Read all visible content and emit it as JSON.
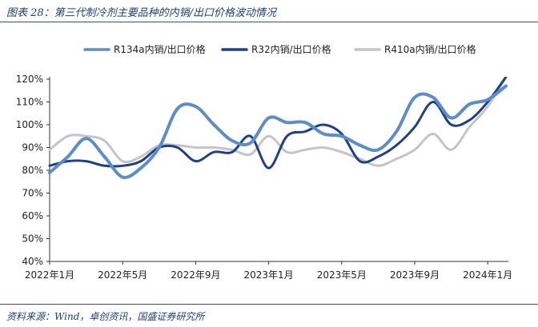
{
  "title": "图表 28：第三代制冷剂主要品种的内销/出口价格波动情况",
  "source": "资料来源：Wind，卓创资讯，国盛证券研究所",
  "chart_data": {
    "type": "line",
    "x_tick_labels": [
      "2022年1月",
      "2022年5月",
      "2022年9月",
      "2023年1月",
      "2023年5月",
      "2023年9月",
      "2024年1月"
    ],
    "y_tick_labels": [
      "40%",
      "50%",
      "60%",
      "70%",
      "80%",
      "90%",
      "100%",
      "110%",
      "120%"
    ],
    "ylim": [
      40,
      120
    ],
    "x_range_months": [
      "2022-01",
      "2024-02"
    ],
    "legend_position": "top",
    "series": [
      {
        "name": "R134a内销/出口价格",
        "color": "#5b8ccb",
        "width": 4,
        "points": [
          [
            "2022-01",
            79
          ],
          [
            "2022-02",
            86
          ],
          [
            "2022-03",
            94
          ],
          [
            "2022-04",
            86
          ],
          [
            "2022-05",
            77
          ],
          [
            "2022-06",
            81
          ],
          [
            "2022-07",
            90
          ],
          [
            "2022-08",
            107
          ],
          [
            "2022-09",
            108
          ],
          [
            "2022-10",
            100
          ],
          [
            "2022-11",
            93
          ],
          [
            "2022-12",
            92
          ],
          [
            "2023-01",
            103
          ],
          [
            "2023-02",
            101
          ],
          [
            "2023-03",
            101
          ],
          [
            "2023-04",
            96
          ],
          [
            "2023-05",
            95
          ],
          [
            "2023-06",
            91
          ],
          [
            "2023-07",
            89
          ],
          [
            "2023-08",
            97
          ],
          [
            "2023-09",
            112
          ],
          [
            "2023-10",
            112
          ],
          [
            "2023-11",
            103
          ],
          [
            "2023-12",
            109
          ],
          [
            "2024-01",
            111
          ],
          [
            "2024-02",
            117
          ]
        ]
      },
      {
        "name": "R32内销/出口价格",
        "color": "#1c3f8e",
        "width": 3,
        "points": [
          [
            "2022-01",
            82
          ],
          [
            "2022-02",
            84
          ],
          [
            "2022-03",
            84
          ],
          [
            "2022-04",
            82
          ],
          [
            "2022-05",
            82
          ],
          [
            "2022-06",
            84
          ],
          [
            "2022-07",
            90
          ],
          [
            "2022-08",
            90
          ],
          [
            "2022-09",
            84
          ],
          [
            "2022-10",
            88
          ],
          [
            "2022-11",
            88
          ],
          [
            "2022-12",
            95
          ],
          [
            "2023-01",
            81
          ],
          [
            "2023-02",
            95
          ],
          [
            "2023-03",
            97
          ],
          [
            "2023-04",
            100
          ],
          [
            "2023-05",
            96
          ],
          [
            "2023-06",
            84
          ],
          [
            "2023-07",
            86
          ],
          [
            "2023-08",
            91
          ],
          [
            "2023-09",
            99
          ],
          [
            "2023-10",
            110
          ],
          [
            "2023-11",
            100
          ],
          [
            "2023-12",
            102
          ],
          [
            "2024-01",
            110
          ],
          [
            "2024-02",
            121
          ]
        ]
      },
      {
        "name": "R410a内销/出口价格",
        "color": "#c4c4c4",
        "width": 3,
        "points": [
          [
            "2022-01",
            89
          ],
          [
            "2022-02",
            95
          ],
          [
            "2022-03",
            95
          ],
          [
            "2022-04",
            93
          ],
          [
            "2022-05",
            84
          ],
          [
            "2022-06",
            86
          ],
          [
            "2022-07",
            91
          ],
          [
            "2022-08",
            91
          ],
          [
            "2022-09",
            90
          ],
          [
            "2022-10",
            90
          ],
          [
            "2022-11",
            89
          ],
          [
            "2022-12",
            87
          ],
          [
            "2023-01",
            95
          ],
          [
            "2023-02",
            88
          ],
          [
            "2023-03",
            89
          ],
          [
            "2023-04",
            90
          ],
          [
            "2023-05",
            88
          ],
          [
            "2023-06",
            85
          ],
          [
            "2023-07",
            82
          ],
          [
            "2023-08",
            85
          ],
          [
            "2023-09",
            89
          ],
          [
            "2023-10",
            96
          ],
          [
            "2023-11",
            89
          ],
          [
            "2023-12",
            99
          ],
          [
            "2024-01",
            108
          ],
          [
            "2024-02",
            121
          ]
        ]
      }
    ]
  }
}
